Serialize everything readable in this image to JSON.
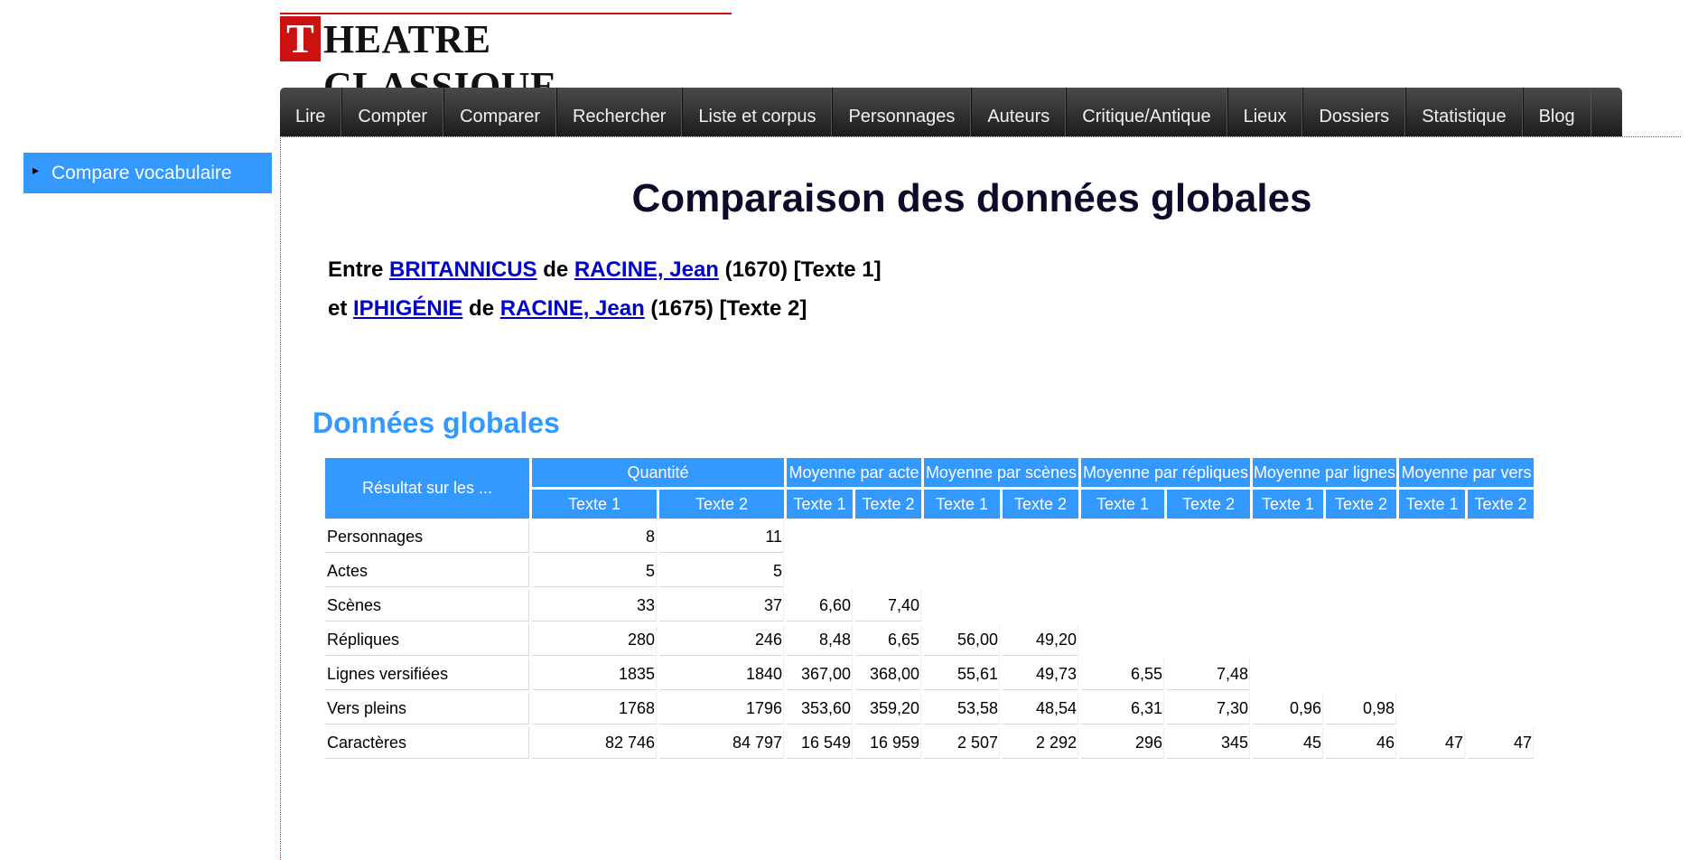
{
  "logo": {
    "initial": "T",
    "rest": "HEATRE CLASSIQUE"
  },
  "nav": [
    "Lire",
    "Compter",
    "Comparer",
    "Rechercher",
    "Liste et corpus",
    "Personnages",
    "Auteurs",
    "Critique/Antique",
    "Lieux",
    "Dossiers",
    "Statistique",
    "Blog"
  ],
  "sidebar": {
    "item": "Compare vocabulaire"
  },
  "page": {
    "title": "Comparaison des données globales",
    "line1": {
      "prefix": "Entre ",
      "play": "BRITANNICUS",
      "de": " de ",
      "author": "RACINE, Jean",
      "suffix": " (1670) [Texte 1]"
    },
    "line2": {
      "prefix": "et ",
      "play": "IPHIGÉNIE",
      "de": " de ",
      "author": "RACINE, Jean",
      "suffix": " (1675) [Texte 2]"
    },
    "section_title": "Données globales"
  },
  "table": {
    "corner": "Résultat sur les ...",
    "groups": [
      "Quantité",
      "Moyenne par acte",
      "Moyenne par scènes",
      "Moyenne par répliques",
      "Moyenne par lignes",
      "Moyenne par vers"
    ],
    "sub_t1": "Texte 1",
    "sub_t2": "Texte 2",
    "rows": [
      {
        "label": "Personnages",
        "cells": [
          "8",
          "11"
        ]
      },
      {
        "label": "Actes",
        "cells": [
          "5",
          "5"
        ]
      },
      {
        "label": "Scènes",
        "cells": [
          "33",
          "37",
          "6,60",
          "7,40"
        ]
      },
      {
        "label": "Répliques",
        "cells": [
          "280",
          "246",
          "8,48",
          "6,65",
          "56,00",
          "49,20"
        ]
      },
      {
        "label": "Lignes versifiées",
        "cells": [
          "1835",
          "1840",
          "367,00",
          "368,00",
          "55,61",
          "49,73",
          "6,55",
          "7,48"
        ]
      },
      {
        "label": "Vers pleins",
        "cells": [
          "1768",
          "1796",
          "353,60",
          "359,20",
          "53,58",
          "48,54",
          "6,31",
          "7,30",
          "0,96",
          "0,98"
        ]
      },
      {
        "label": "Caractères",
        "cells": [
          "82 746",
          "84 797",
          "16 549",
          "16 959",
          "2 507",
          "2 292",
          "296",
          "345",
          "45",
          "46",
          "47",
          "47"
        ]
      }
    ]
  }
}
